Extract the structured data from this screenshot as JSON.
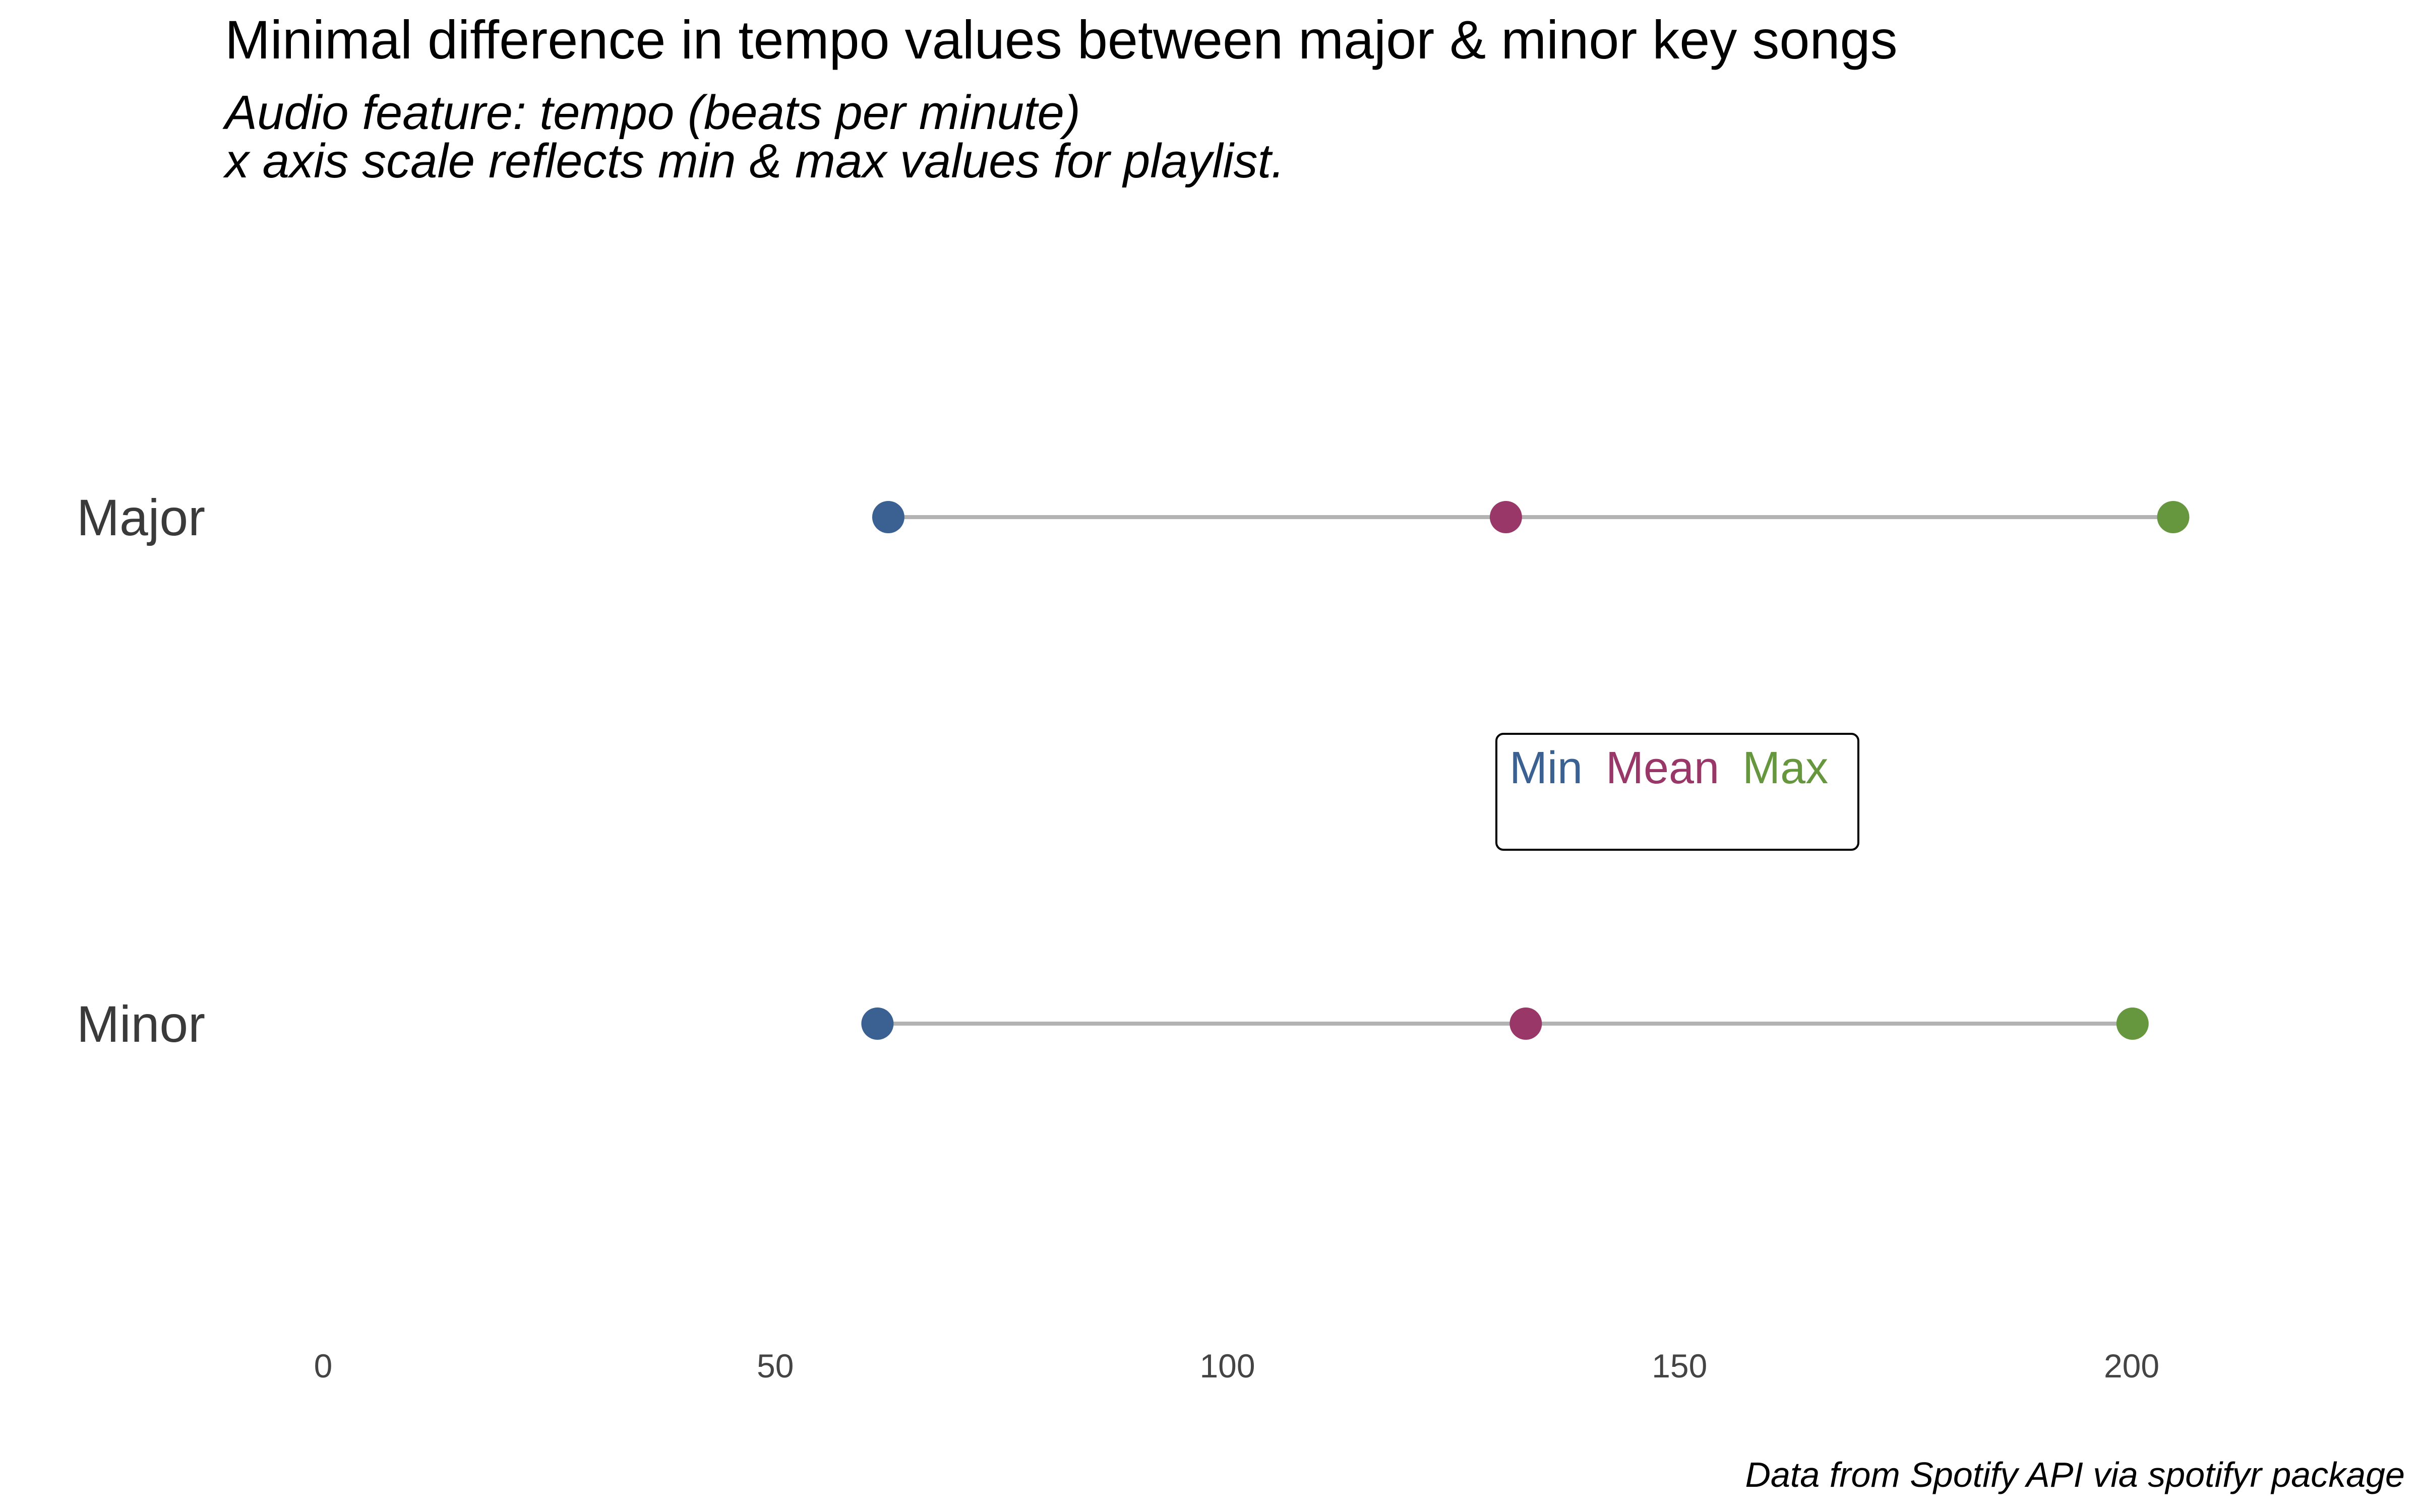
{
  "chart_data": {
    "type": "dumbbell",
    "title": "Minimal difference in tempo values between major & minor key songs",
    "subtitle_line1": "Audio feature: tempo (beats per minute)",
    "subtitle_line2": "x axis scale reflects min & max values for playlist.",
    "caption": "Data from Spotify API via spotifyr package",
    "categories": [
      "Major",
      "Minor"
    ],
    "series": [
      {
        "name": "Min",
        "values": [
          62.5,
          61.3
        ]
      },
      {
        "name": "Mean",
        "values": [
          130.8,
          133.0
        ]
      },
      {
        "name": "Max",
        "values": [
          204.6,
          200.1
        ]
      }
    ],
    "xlim": [
      0,
      220
    ],
    "xticks": [
      0,
      50,
      100,
      150,
      200
    ],
    "grid": false,
    "legend": {
      "position": "center-right",
      "items": [
        {
          "label": "Min",
          "color": "#3a6192"
        },
        {
          "label": "Mean",
          "color": "#993868"
        },
        {
          "label": "Max",
          "color": "#66973f"
        }
      ]
    },
    "segment_color": "#b3b3b3"
  }
}
